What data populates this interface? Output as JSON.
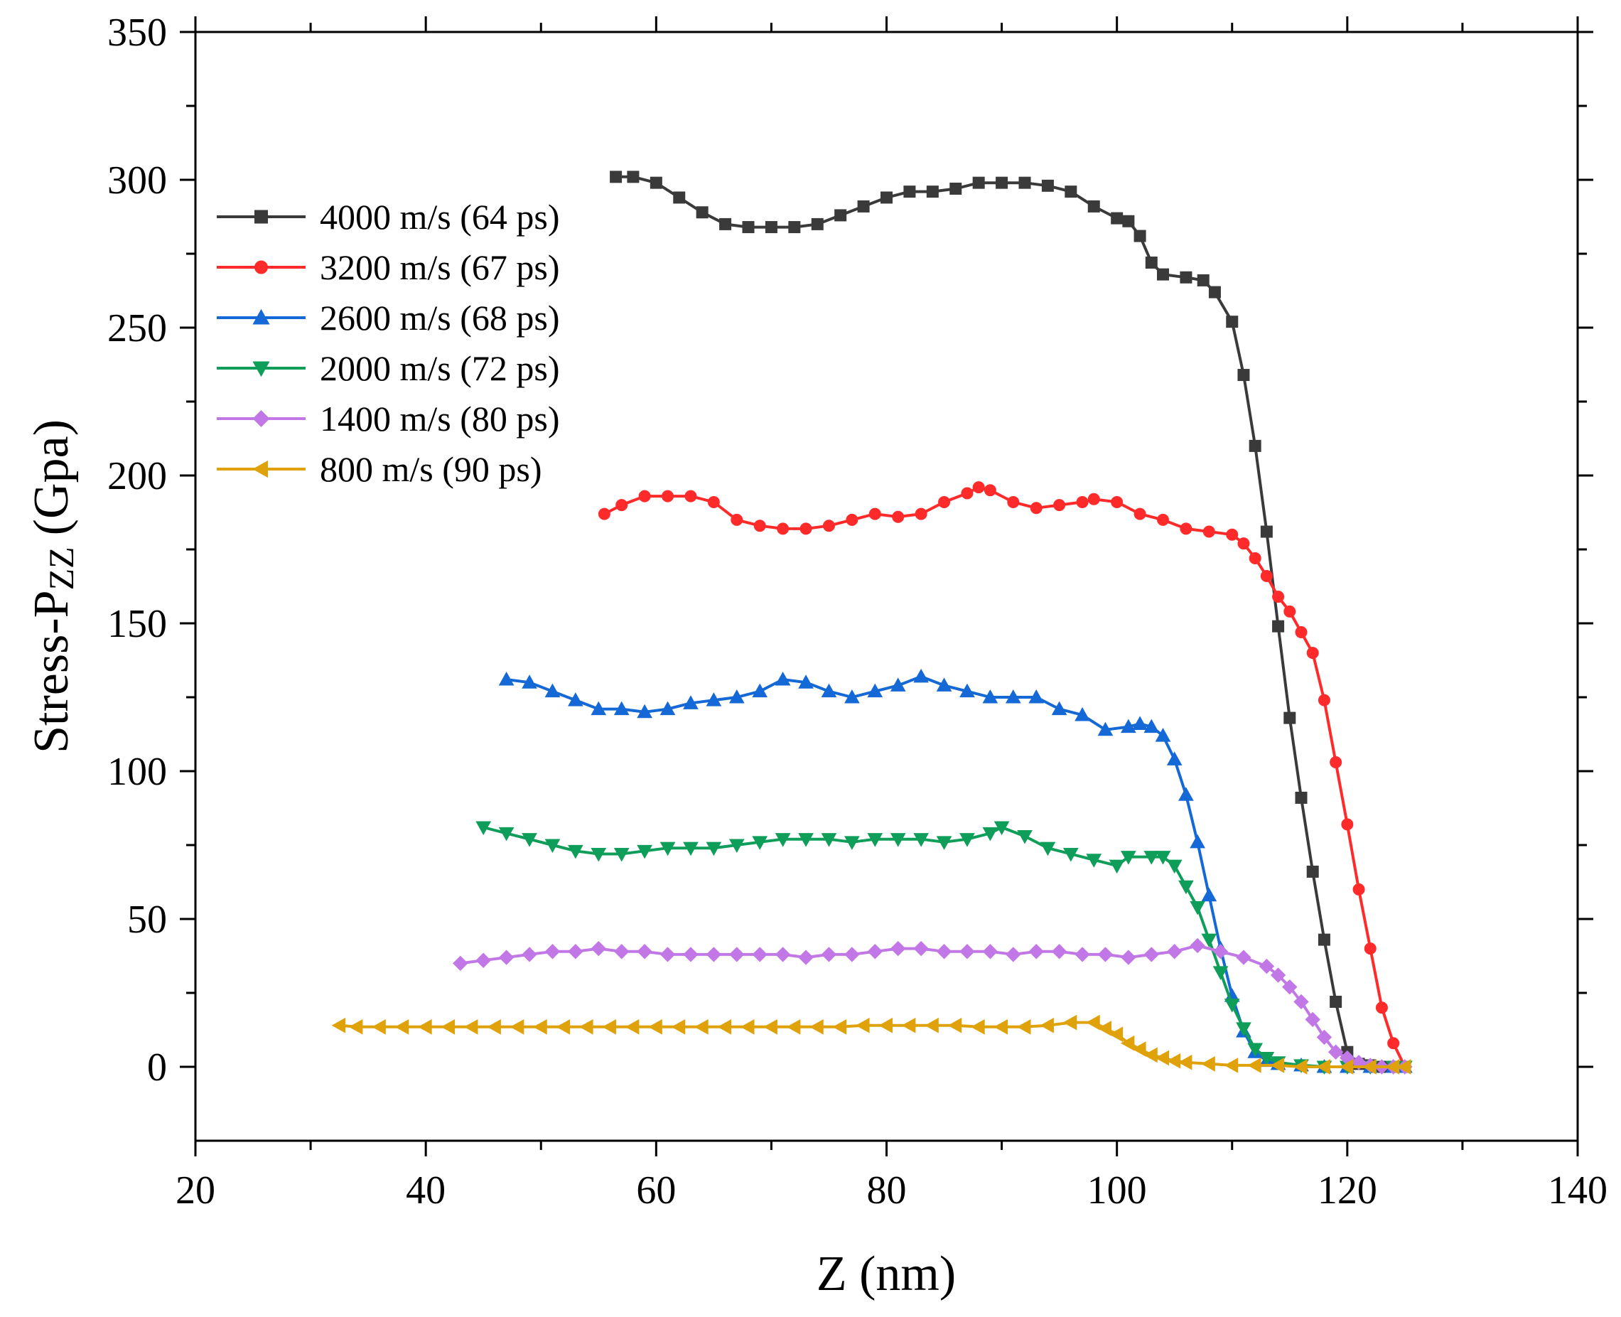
{
  "chart_data": {
    "type": "line",
    "title": "",
    "xlabel": "Z (nm)",
    "ylabel": "Stress-P",
    "ylabel_subscript": "ZZ",
    "ylabel_unit": "(Gpa)",
    "xlim": [
      20,
      140
    ],
    "ylim": [
      -25,
      350
    ],
    "xticks": [
      20,
      40,
      60,
      80,
      100,
      120,
      140
    ],
    "yticks": [
      0,
      50,
      100,
      150,
      200,
      250,
      300,
      350
    ],
    "legend_position": "top-left",
    "series": [
      {
        "name": "4000 m/s (64 ps)",
        "color": "#3a3a3a",
        "marker": "square",
        "points": [
          [
            56.5,
            301
          ],
          [
            58,
            301
          ],
          [
            60,
            299
          ],
          [
            62,
            294
          ],
          [
            64,
            289
          ],
          [
            66,
            285
          ],
          [
            68,
            284
          ],
          [
            70,
            284
          ],
          [
            72,
            284
          ],
          [
            74,
            285
          ],
          [
            76,
            288
          ],
          [
            78,
            291
          ],
          [
            80,
            294
          ],
          [
            82,
            296
          ],
          [
            84,
            296
          ],
          [
            86,
            297
          ],
          [
            88,
            299
          ],
          [
            90,
            299
          ],
          [
            92,
            299
          ],
          [
            94,
            298
          ],
          [
            96,
            296
          ],
          [
            98,
            291
          ],
          [
            100,
            287
          ],
          [
            101,
            286
          ],
          [
            102,
            281
          ],
          [
            103,
            272
          ],
          [
            104,
            268
          ],
          [
            106,
            267
          ],
          [
            107.5,
            266
          ],
          [
            108.5,
            262
          ],
          [
            110,
            252
          ],
          [
            111,
            234
          ],
          [
            112,
            210
          ],
          [
            113,
            181
          ],
          [
            114,
            149
          ],
          [
            115,
            118
          ],
          [
            116,
            91
          ],
          [
            117,
            66
          ],
          [
            118,
            43
          ],
          [
            119,
            22
          ],
          [
            120,
            5
          ],
          [
            121,
            1
          ],
          [
            122,
            0.5
          ],
          [
            123,
            0
          ],
          [
            124,
            0
          ],
          [
            125,
            0
          ]
        ]
      },
      {
        "name": "3200 m/s (67 ps)",
        "color": "#ff2b2b",
        "marker": "circle",
        "points": [
          [
            55.5,
            187
          ],
          [
            57,
            190
          ],
          [
            59,
            193
          ],
          [
            61,
            193
          ],
          [
            63,
            193
          ],
          [
            65,
            191
          ],
          [
            67,
            185
          ],
          [
            69,
            183
          ],
          [
            71,
            182
          ],
          [
            73,
            182
          ],
          [
            75,
            183
          ],
          [
            77,
            185
          ],
          [
            79,
            187
          ],
          [
            81,
            186
          ],
          [
            83,
            187
          ],
          [
            85,
            191
          ],
          [
            87,
            194
          ],
          [
            88,
            196
          ],
          [
            89,
            195
          ],
          [
            91,
            191
          ],
          [
            93,
            189
          ],
          [
            95,
            190
          ],
          [
            97,
            191
          ],
          [
            98,
            192
          ],
          [
            100,
            191
          ],
          [
            102,
            187
          ],
          [
            104,
            185
          ],
          [
            106,
            182
          ],
          [
            108,
            181
          ],
          [
            110,
            180
          ],
          [
            111,
            177
          ],
          [
            112,
            172
          ],
          [
            113,
            166
          ],
          [
            114,
            159
          ],
          [
            115,
            154
          ],
          [
            116,
            147
          ],
          [
            117,
            140
          ],
          [
            118,
            124
          ],
          [
            119,
            103
          ],
          [
            120,
            82
          ],
          [
            121,
            60
          ],
          [
            122,
            40
          ],
          [
            123,
            20
          ],
          [
            124,
            8
          ],
          [
            125,
            0
          ]
        ]
      },
      {
        "name": "2600 m/s (68 ps)",
        "color": "#1569d6",
        "marker": "triangle-up",
        "points": [
          [
            47,
            131
          ],
          [
            49,
            130
          ],
          [
            51,
            127
          ],
          [
            53,
            124
          ],
          [
            55,
            121
          ],
          [
            57,
            121
          ],
          [
            59,
            120
          ],
          [
            61,
            121
          ],
          [
            63,
            123
          ],
          [
            65,
            124
          ],
          [
            67,
            125
          ],
          [
            69,
            127
          ],
          [
            71,
            131
          ],
          [
            73,
            130
          ],
          [
            75,
            127
          ],
          [
            77,
            125
          ],
          [
            79,
            127
          ],
          [
            81,
            129
          ],
          [
            83,
            132
          ],
          [
            85,
            129
          ],
          [
            87,
            127
          ],
          [
            89,
            125
          ],
          [
            91,
            125
          ],
          [
            93,
            125
          ],
          [
            95,
            121
          ],
          [
            97,
            119
          ],
          [
            99,
            114
          ],
          [
            101,
            115
          ],
          [
            102,
            116
          ],
          [
            103,
            115
          ],
          [
            104,
            112
          ],
          [
            105,
            104
          ],
          [
            106,
            92
          ],
          [
            107,
            76
          ],
          [
            108,
            58
          ],
          [
            109,
            40
          ],
          [
            110,
            24
          ],
          [
            111,
            12
          ],
          [
            112,
            5
          ],
          [
            113,
            2
          ],
          [
            114,
            1
          ],
          [
            116,
            0.5
          ],
          [
            118,
            0
          ],
          [
            120,
            0
          ],
          [
            122,
            0
          ],
          [
            124,
            0
          ],
          [
            125,
            0
          ]
        ]
      },
      {
        "name": "2000 m/s (72 ps)",
        "color": "#0f9e5a",
        "marker": "triangle-down",
        "points": [
          [
            45,
            81
          ],
          [
            47,
            79
          ],
          [
            49,
            77
          ],
          [
            51,
            75
          ],
          [
            53,
            73
          ],
          [
            55,
            72
          ],
          [
            57,
            72
          ],
          [
            59,
            73
          ],
          [
            61,
            74
          ],
          [
            63,
            74
          ],
          [
            65,
            74
          ],
          [
            67,
            75
          ],
          [
            69,
            76
          ],
          [
            71,
            77
          ],
          [
            73,
            77
          ],
          [
            75,
            77
          ],
          [
            77,
            76
          ],
          [
            79,
            77
          ],
          [
            81,
            77
          ],
          [
            83,
            77
          ],
          [
            85,
            76
          ],
          [
            87,
            77
          ],
          [
            89,
            79
          ],
          [
            90,
            81
          ],
          [
            92,
            78
          ],
          [
            94,
            74
          ],
          [
            96,
            72
          ],
          [
            98,
            70
          ],
          [
            100,
            68
          ],
          [
            101,
            71
          ],
          [
            103,
            71
          ],
          [
            104,
            71
          ],
          [
            105,
            68
          ],
          [
            106,
            61
          ],
          [
            107,
            54
          ],
          [
            108,
            43
          ],
          [
            109,
            32
          ],
          [
            110,
            21
          ],
          [
            111,
            13
          ],
          [
            112,
            6
          ],
          [
            113,
            3
          ],
          [
            114,
            1.5
          ],
          [
            116,
            0.5
          ],
          [
            118,
            0
          ],
          [
            120,
            0
          ],
          [
            122,
            0
          ],
          [
            124,
            0
          ],
          [
            125,
            0
          ]
        ]
      },
      {
        "name": "1400 m/s (80 ps)",
        "color": "#c277e6",
        "marker": "diamond",
        "points": [
          [
            43,
            35
          ],
          [
            45,
            36
          ],
          [
            47,
            37
          ],
          [
            49,
            38
          ],
          [
            51,
            39
          ],
          [
            53,
            39
          ],
          [
            55,
            40
          ],
          [
            57,
            39
          ],
          [
            59,
            39
          ],
          [
            61,
            38
          ],
          [
            63,
            38
          ],
          [
            65,
            38
          ],
          [
            67,
            38
          ],
          [
            69,
            38
          ],
          [
            71,
            38
          ],
          [
            73,
            37
          ],
          [
            75,
            38
          ],
          [
            77,
            38
          ],
          [
            79,
            39
          ],
          [
            81,
            40
          ],
          [
            83,
            40
          ],
          [
            85,
            39
          ],
          [
            87,
            39
          ],
          [
            89,
            39
          ],
          [
            91,
            38
          ],
          [
            93,
            39
          ],
          [
            95,
            39
          ],
          [
            97,
            38
          ],
          [
            99,
            38
          ],
          [
            101,
            37
          ],
          [
            103,
            38
          ],
          [
            105,
            39
          ],
          [
            107,
            41
          ],
          [
            109,
            39
          ],
          [
            111,
            37
          ],
          [
            113,
            34
          ],
          [
            114,
            31
          ],
          [
            115,
            27
          ],
          [
            116,
            22
          ],
          [
            117,
            16
          ],
          [
            118,
            10
          ],
          [
            119,
            5
          ],
          [
            120,
            3
          ],
          [
            121,
            1.5
          ],
          [
            122,
            0.5
          ],
          [
            123,
            0
          ],
          [
            124,
            0
          ],
          [
            125,
            0
          ]
        ]
      },
      {
        "name": "800 m/s (90 ps)",
        "color": "#e0a20a",
        "marker": "triangle-left",
        "points": [
          [
            32.5,
            14
          ],
          [
            34,
            13.5
          ],
          [
            36,
            13.5
          ],
          [
            38,
            13.5
          ],
          [
            40,
            13.5
          ],
          [
            42,
            13.5
          ],
          [
            44,
            13.5
          ],
          [
            46,
            13.5
          ],
          [
            48,
            13.5
          ],
          [
            50,
            13.5
          ],
          [
            52,
            13.5
          ],
          [
            54,
            13.5
          ],
          [
            56,
            13.5
          ],
          [
            58,
            13.5
          ],
          [
            60,
            13.5
          ],
          [
            62,
            13.5
          ],
          [
            64,
            13.5
          ],
          [
            66,
            13.5
          ],
          [
            68,
            13.5
          ],
          [
            70,
            13.5
          ],
          [
            72,
            13.5
          ],
          [
            74,
            13.5
          ],
          [
            76,
            13.5
          ],
          [
            78,
            14
          ],
          [
            80,
            14
          ],
          [
            82,
            14
          ],
          [
            84,
            14
          ],
          [
            86,
            14
          ],
          [
            88,
            13.5
          ],
          [
            90,
            13.5
          ],
          [
            92,
            13.5
          ],
          [
            94,
            14
          ],
          [
            96,
            15
          ],
          [
            98,
            15
          ],
          [
            99,
            13
          ],
          [
            100,
            11
          ],
          [
            101,
            8
          ],
          [
            102,
            6
          ],
          [
            103,
            4
          ],
          [
            104,
            3
          ],
          [
            105,
            2
          ],
          [
            106,
            1.5
          ],
          [
            108,
            1
          ],
          [
            110,
            0.5
          ],
          [
            112,
            0.5
          ],
          [
            114,
            0.5
          ],
          [
            116,
            0
          ],
          [
            118,
            0
          ],
          [
            120,
            0
          ],
          [
            122,
            0
          ],
          [
            124,
            0
          ],
          [
            125,
            0
          ]
        ]
      }
    ]
  }
}
